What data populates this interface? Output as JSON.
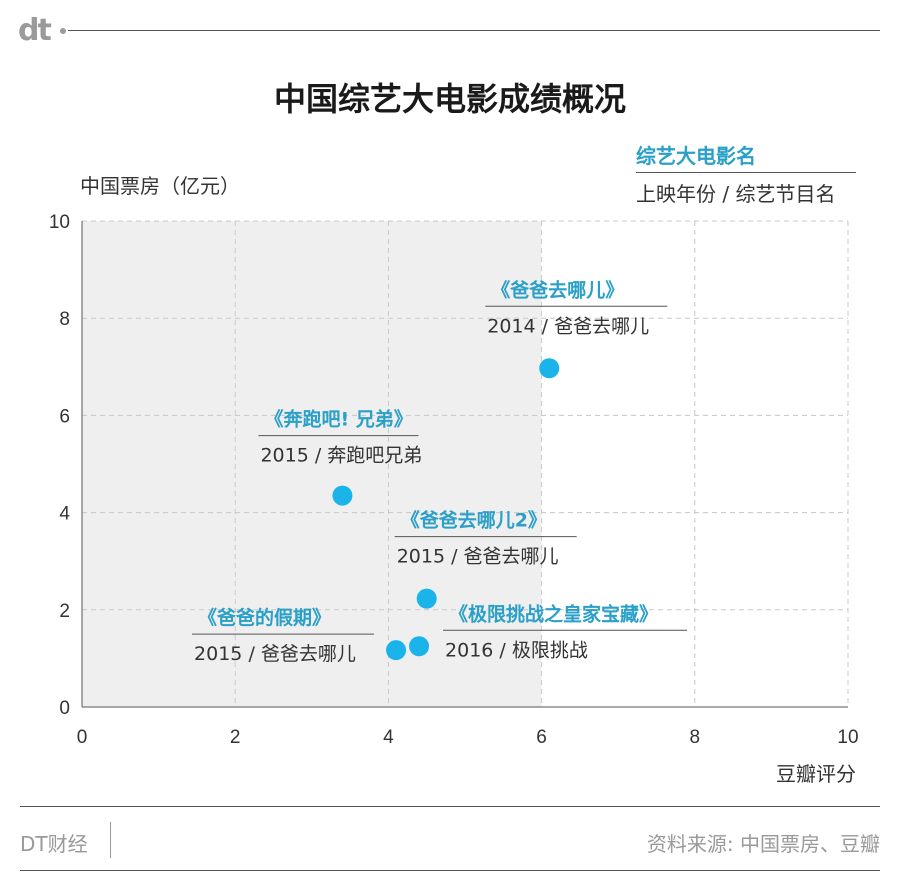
{
  "brand": {
    "logo": "dt"
  },
  "title": "中国综艺大电影成绩概况",
  "legend": {
    "title": "综艺大电影名",
    "subtitle": "上映年份 / 综艺节目名"
  },
  "footer": {
    "left": "DT财经",
    "right": "资料来源: 中国票房、豆瓣"
  },
  "colors": {
    "accent": "#2aa0c8",
    "point": "#1ab4ea",
    "shade": "#efefef"
  },
  "chart_data": {
    "type": "scatter",
    "xlabel": "豆瓣评分",
    "ylabel": "中国票房（亿元）",
    "xlim": [
      0,
      10
    ],
    "ylim": [
      0,
      10
    ],
    "xticks": [
      0,
      2,
      4,
      6,
      8,
      10
    ],
    "yticks": [
      0,
      2,
      4,
      6,
      8,
      10
    ],
    "shaded_x_range": [
      0,
      6
    ],
    "grid": true,
    "points": [
      {
        "x": 6.1,
        "y": 6.97,
        "title": "《爸爸去哪儿》",
        "subtitle": "2014 / 爸爸去哪儿"
      },
      {
        "x": 3.4,
        "y": 4.35,
        "title": "《奔跑吧! 兄弟》",
        "subtitle": "2015 / 奔跑吧兄弟"
      },
      {
        "x": 4.5,
        "y": 2.23,
        "title": "《爸爸去哪儿2》",
        "subtitle": "2015 / 爸爸去哪儿"
      },
      {
        "x": 4.1,
        "y": 1.17,
        "title": "《爸爸的假期》",
        "subtitle": "2015 / 爸爸去哪儿"
      },
      {
        "x": 4.4,
        "y": 1.25,
        "title": "《极限挑战之皇家宝藏》",
        "subtitle": "2016 / 极限挑战"
      }
    ]
  }
}
